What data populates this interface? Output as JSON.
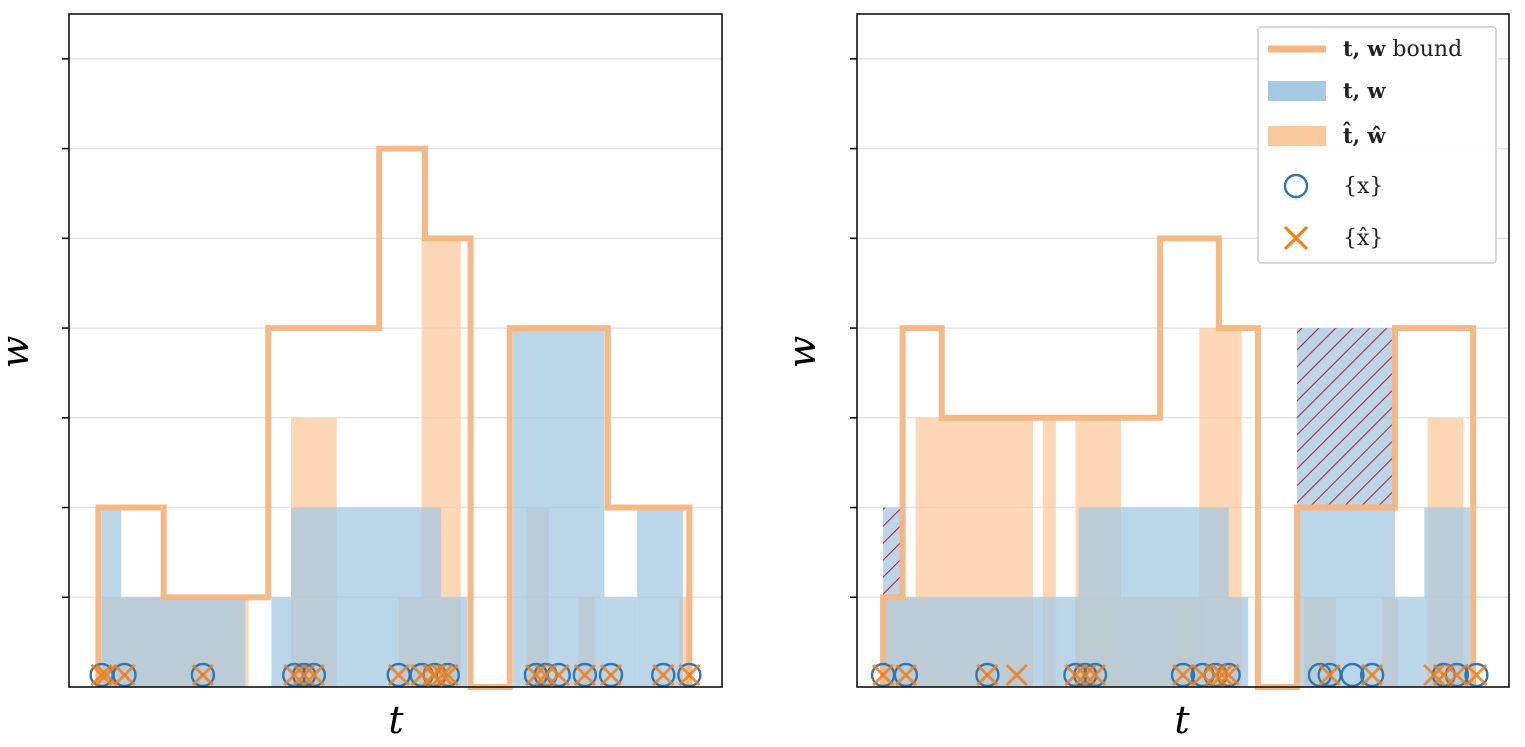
{
  "colors": {
    "bound": "#f5b57f",
    "tw_fill": "#a6c8e2",
    "that_fill": "#fcc99e",
    "x_marker": "#2f78b1",
    "xhat_marker": "#f07f1d",
    "hatch": "#b0273d",
    "grid": "#e4e4e4",
    "empty": "#ffffff"
  },
  "legend": {
    "bound_prefix": "t, w",
    "bound_suffix": " bound",
    "tw": "t, w",
    "that": "t̂, ŵ",
    "x": "{x}",
    "xhat": "{x̂}"
  },
  "chart_data": [
    {
      "type": "histogram-overlay",
      "panel": "left",
      "xlabel": "t",
      "ylabel": "w",
      "xlim": [
        0,
        100
      ],
      "ylim": [
        0,
        7.5
      ],
      "yticks": [
        1,
        2,
        3,
        4,
        5,
        6,
        7
      ],
      "yticklabels": [],
      "xticks": [],
      "grid": "horizontal",
      "bound": [
        [
          4.5,
          2
        ],
        [
          14.5,
          1
        ],
        [
          30.5,
          4
        ],
        [
          47.5,
          6
        ],
        [
          54.5,
          5
        ],
        [
          61.5,
          0
        ],
        [
          67.5,
          4
        ],
        [
          82.5,
          2
        ],
        [
          95,
          2
        ]
      ],
      "tw_bars": [
        {
          "x0": 5,
          "x1": 8,
          "h": 2
        },
        {
          "x0": 8,
          "x1": 27,
          "h": 1
        },
        {
          "x0": 31,
          "x1": 34,
          "h": 1
        },
        {
          "x0": 34,
          "x1": 57,
          "h": 2
        },
        {
          "x0": 57,
          "x1": 61,
          "h": 1
        },
        {
          "x0": 68,
          "x1": 82,
          "h": 4
        },
        {
          "x0": 82,
          "x1": 87,
          "h": 1
        },
        {
          "x0": 87,
          "x1": 94,
          "h": 2
        }
      ],
      "that_bars": [
        {
          "x0": 5,
          "x1": 9,
          "h": 1
        },
        {
          "x0": 9,
          "x1": 27.5,
          "h": 1
        },
        {
          "x0": 34,
          "x1": 41,
          "h": 3
        },
        {
          "x0": 50.5,
          "x1": 54,
          "h": 1
        },
        {
          "x0": 54,
          "x1": 60,
          "h": 5
        },
        {
          "x0": 70,
          "x1": 73.5,
          "h": 2
        },
        {
          "x0": 78,
          "x1": 80.5,
          "h": 1
        },
        {
          "x0": 93.5,
          "x1": 95,
          "h": 1
        }
      ],
      "x_points": [
        5,
        8.5,
        20.5,
        34.5,
        36,
        37.5,
        50.5,
        54,
        56,
        58,
        71.5,
        73,
        75,
        79,
        83,
        91,
        95
      ],
      "xhat_points": [
        5,
        8.5,
        20.5,
        34.5,
        36,
        37.5,
        50.5,
        54,
        56,
        58,
        71.5,
        73,
        75,
        79,
        83,
        91,
        95,
        5.7,
        55.8,
        57.2
      ]
    },
    {
      "type": "histogram-overlay",
      "panel": "right",
      "xlabel": "t",
      "ylabel": "w",
      "xlim": [
        0,
        100
      ],
      "ylim": [
        0,
        7.5
      ],
      "yticks": [
        1,
        2,
        3,
        4,
        5,
        6,
        7
      ],
      "yticklabels": [],
      "xticks": [],
      "grid": "horizontal",
      "bound": [
        [
          4,
          1
        ],
        [
          7,
          4
        ],
        [
          13,
          3
        ],
        [
          30.5,
          3
        ],
        [
          31.5,
          3
        ],
        [
          46.5,
          5
        ],
        [
          55.5,
          4
        ],
        [
          61.5,
          0
        ],
        [
          67.5,
          2
        ],
        [
          82.5,
          4
        ],
        [
          94.5,
          4
        ]
      ],
      "tw_bars": [
        {
          "x0": 4,
          "x1": 7,
          "h": 2
        },
        {
          "x0": 7,
          "x1": 31.5,
          "h": 1
        },
        {
          "x0": 31.5,
          "x1": 34,
          "h": 1
        },
        {
          "x0": 34,
          "x1": 57,
          "h": 2
        },
        {
          "x0": 57,
          "x1": 60,
          "h": 1
        },
        {
          "x0": 67.5,
          "x1": 82.5,
          "h": 4
        },
        {
          "x0": 82.5,
          "x1": 87,
          "h": 1
        },
        {
          "x0": 87,
          "x1": 94,
          "h": 2
        }
      ],
      "that_bars": [
        {
          "x0": 4,
          "x1": 9,
          "h": 1
        },
        {
          "x0": 9,
          "x1": 27,
          "h": 3
        },
        {
          "x0": 28.5,
          "x1": 30.5,
          "h": 3
        },
        {
          "x0": 33.5,
          "x1": 40.5,
          "h": 3
        },
        {
          "x0": 34,
          "x1": 53,
          "h": 1
        },
        {
          "x0": 49,
          "x1": 52,
          "h": 1
        },
        {
          "x0": 52.5,
          "x1": 59,
          "h": 4
        },
        {
          "x0": 68.5,
          "x1": 73.5,
          "h": 1
        },
        {
          "x0": 80.5,
          "x1": 83,
          "h": 1
        },
        {
          "x0": 87.5,
          "x1": 93,
          "h": 3
        }
      ],
      "hatched": [
        {
          "x0": 4,
          "x1": 7,
          "h0": 1,
          "h1": 2
        },
        {
          "x0": 67.5,
          "x1": 82.5,
          "h0": 2,
          "h1": 4
        }
      ],
      "x_points": [
        4,
        7.5,
        20,
        33.5,
        35,
        36.5,
        50,
        53,
        55,
        57,
        71,
        72.5,
        76,
        79,
        90,
        92,
        95
      ],
      "xhat_points": [
        4,
        7.5,
        20,
        33.5,
        35,
        36.5,
        50,
        53,
        55,
        57,
        72.5,
        79,
        90,
        92,
        95,
        24.5,
        56,
        88.5
      ]
    }
  ]
}
